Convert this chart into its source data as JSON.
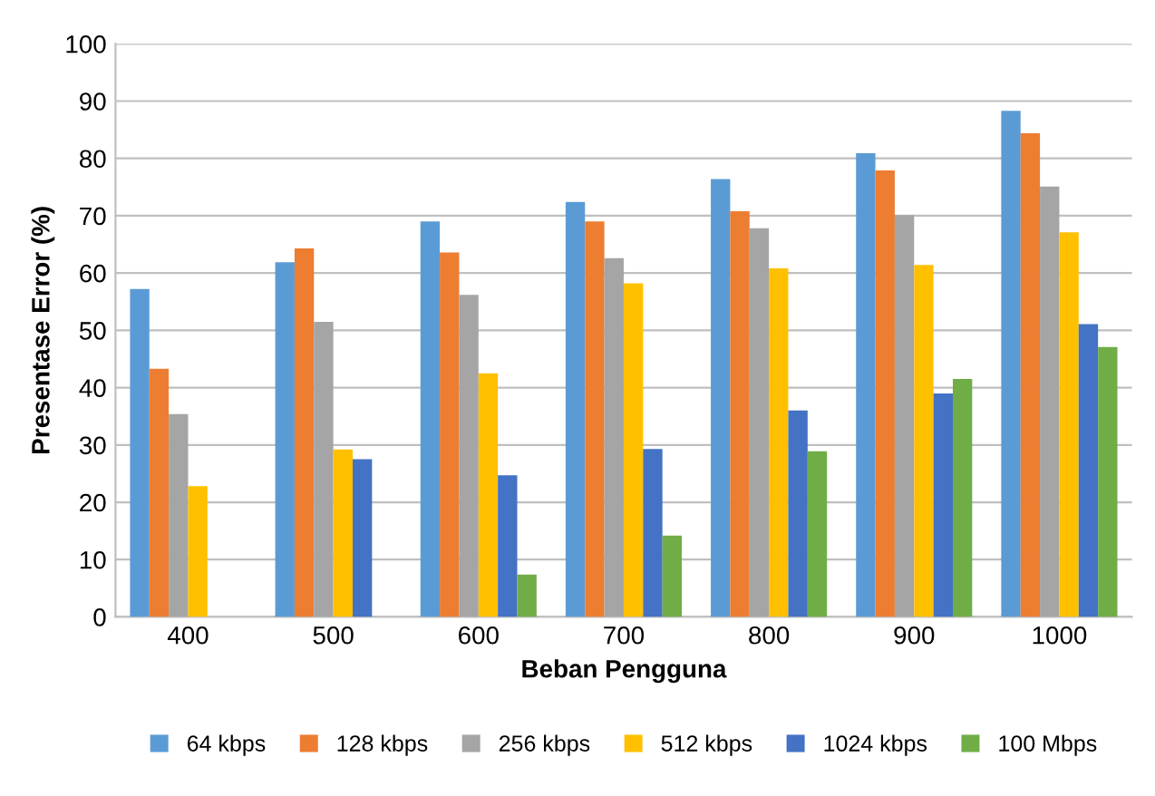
{
  "chart_data": {
    "type": "bar",
    "xlabel": "Beban Pengguna",
    "ylabel": "Presentase Error (%)",
    "categories": [
      "400",
      "500",
      "600",
      "700",
      "800",
      "900",
      "1000"
    ],
    "ylim": [
      0,
      100
    ],
    "yticks": [
      0,
      10,
      20,
      30,
      40,
      50,
      60,
      70,
      80,
      90,
      100
    ],
    "grid": "y",
    "legend": "bottom",
    "series": [
      {
        "name": "64 kbps",
        "color": "#5b9bd5",
        "values": [
          57.2,
          61.9,
          69.0,
          72.4,
          76.4,
          80.9,
          88.3
        ]
      },
      {
        "name": "128 kbps",
        "color": "#ed7d31",
        "values": [
          43.3,
          64.3,
          63.6,
          69.0,
          70.8,
          77.9,
          84.4
        ]
      },
      {
        "name": "256 kbps",
        "color": "#a5a5a5",
        "values": [
          35.4,
          51.5,
          56.2,
          62.6,
          67.8,
          70.1,
          75.1
        ]
      },
      {
        "name": "512 kbps",
        "color": "#ffc000",
        "values": [
          22.8,
          29.2,
          42.5,
          58.2,
          60.8,
          61.4,
          67.1
        ]
      },
      {
        "name": "1024 kbps",
        "color": "#4472c4",
        "values": [
          null,
          27.5,
          24.7,
          29.3,
          36.0,
          39.0,
          51.1
        ]
      },
      {
        "name": "100 Mbps",
        "color": "#70ad47",
        "values": [
          null,
          null,
          7.4,
          14.2,
          28.9,
          41.5,
          47.1
        ]
      }
    ]
  }
}
